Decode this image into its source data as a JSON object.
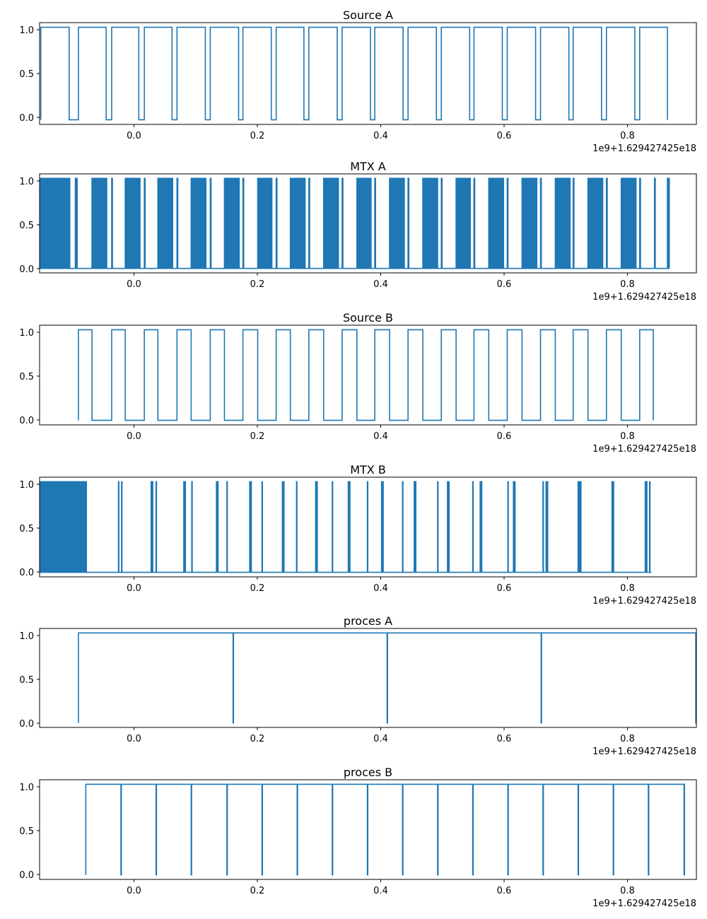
{
  "chart_data": [
    {
      "type": "line",
      "drawstyle": "steps",
      "title": "Source A",
      "xlim": [
        -0.153,
        0.913
      ],
      "ylim": [
        -0.05,
        1.05
      ],
      "x_ticks": [
        "0.0",
        "0.2",
        "0.4",
        "0.6",
        "0.8"
      ],
      "y_ticks": [
        "0.0",
        "0.5",
        "1.0"
      ],
      "x_offset_label": "1e9+1.629427425e18",
      "pattern": "square",
      "x_range": [
        -0.151,
        0.867
      ],
      "pulses": [
        [
          -0.151,
          -0.105
        ],
        [
          -0.09,
          -0.045
        ],
        [
          -0.036,
          0.008
        ],
        [
          0.017,
          0.062
        ],
        [
          0.07,
          0.116
        ],
        [
          0.124,
          0.17
        ],
        [
          0.177,
          0.223
        ],
        [
          0.231,
          0.276
        ],
        [
          0.284,
          0.33
        ],
        [
          0.338,
          0.384
        ],
        [
          0.391,
          0.437
        ],
        [
          0.445,
          0.491
        ],
        [
          0.499,
          0.545
        ],
        [
          0.552,
          0.598
        ],
        [
          0.606,
          0.652
        ],
        [
          0.66,
          0.706
        ],
        [
          0.713,
          0.759
        ],
        [
          0.767,
          0.813
        ],
        [
          0.821,
          0.866
        ]
      ],
      "data_points": [
        [
          -0.151,
          0
        ],
        [
          -0.151,
          1
        ],
        [
          -0.105,
          1
        ],
        [
          -0.105,
          0
        ],
        [
          -0.09,
          0
        ],
        [
          -0.09,
          1
        ],
        [
          -0.045,
          1
        ],
        [
          -0.045,
          0
        ],
        [
          -0.036,
          0
        ],
        [
          -0.036,
          1
        ],
        [
          0.008,
          1
        ],
        [
          0.008,
          0
        ],
        [
          0.017,
          0
        ],
        [
          0.017,
          1
        ],
        [
          0.062,
          1
        ],
        [
          0.062,
          0
        ],
        [
          0.07,
          0
        ],
        [
          0.07,
          1
        ],
        [
          0.116,
          1
        ],
        [
          0.116,
          0
        ],
        [
          0.124,
          0
        ],
        [
          0.124,
          1
        ],
        [
          0.17,
          1
        ],
        [
          0.17,
          0
        ],
        [
          0.177,
          0
        ],
        [
          0.177,
          1
        ],
        [
          0.223,
          1
        ],
        [
          0.223,
          0
        ],
        [
          0.231,
          0
        ],
        [
          0.231,
          1
        ],
        [
          0.276,
          1
        ],
        [
          0.276,
          0
        ],
        [
          0.284,
          0
        ],
        [
          0.284,
          1
        ],
        [
          0.33,
          1
        ],
        [
          0.33,
          0
        ],
        [
          0.338,
          0
        ],
        [
          0.338,
          1
        ],
        [
          0.384,
          1
        ],
        [
          0.384,
          0
        ],
        [
          0.391,
          0
        ],
        [
          0.391,
          1
        ],
        [
          0.437,
          1
        ],
        [
          0.437,
          0
        ],
        [
          0.445,
          0
        ],
        [
          0.445,
          1
        ],
        [
          0.491,
          1
        ],
        [
          0.491,
          0
        ],
        [
          0.499,
          0
        ],
        [
          0.499,
          1
        ],
        [
          0.545,
          1
        ],
        [
          0.545,
          0
        ],
        [
          0.552,
          0
        ],
        [
          0.552,
          1
        ],
        [
          0.598,
          1
        ],
        [
          0.598,
          0
        ],
        [
          0.606,
          0
        ],
        [
          0.606,
          1
        ],
        [
          0.652,
          1
        ],
        [
          0.652,
          0
        ],
        [
          0.66,
          0
        ],
        [
          0.66,
          1
        ],
        [
          0.706,
          1
        ],
        [
          0.706,
          0
        ],
        [
          0.713,
          0
        ],
        [
          0.713,
          1
        ],
        [
          0.759,
          1
        ],
        [
          0.759,
          0
        ],
        [
          0.767,
          0
        ],
        [
          0.767,
          1
        ],
        [
          0.813,
          1
        ],
        [
          0.813,
          0
        ],
        [
          0.821,
          0
        ],
        [
          0.821,
          1
        ],
        [
          0.866,
          1
        ],
        [
          0.866,
          0
        ]
      ],
      "color": "#1f77b4"
    },
    {
      "type": "line",
      "drawstyle": "steps",
      "title": "MTX A",
      "xlim": [
        -0.153,
        0.913
      ],
      "ylim": [
        -0.05,
        1.05
      ],
      "x_ticks": [
        "0.0",
        "0.2",
        "0.4",
        "0.6",
        "0.8"
      ],
      "y_ticks": [
        "0.0",
        "0.5",
        "1.0"
      ],
      "x_offset_label": "1e9+1.629427425e18",
      "pattern": "dense-bursts",
      "bursts": [
        [
          -0.153,
          -0.104
        ],
        [
          -0.095,
          -0.092
        ],
        [
          -0.068,
          -0.043
        ],
        [
          -0.036,
          -0.034
        ],
        [
          -0.014,
          0.01
        ],
        [
          0.017,
          0.019
        ],
        [
          0.039,
          0.063
        ],
        [
          0.07,
          0.072
        ],
        [
          0.093,
          0.117
        ],
        [
          0.124,
          0.126
        ],
        [
          0.147,
          0.171
        ],
        [
          0.177,
          0.179
        ],
        [
          0.201,
          0.224
        ],
        [
          0.231,
          0.233
        ],
        [
          0.254,
          0.278
        ],
        [
          0.284,
          0.286
        ],
        [
          0.308,
          0.332
        ],
        [
          0.338,
          0.34
        ],
        [
          0.362,
          0.385
        ],
        [
          0.391,
          0.393
        ],
        [
          0.415,
          0.439
        ],
        [
          0.445,
          0.447
        ],
        [
          0.469,
          0.493
        ],
        [
          0.499,
          0.501
        ],
        [
          0.523,
          0.546
        ],
        [
          0.552,
          0.554
        ],
        [
          0.576,
          0.6
        ],
        [
          0.606,
          0.608
        ],
        [
          0.63,
          0.654
        ],
        [
          0.66,
          0.662
        ],
        [
          0.684,
          0.708
        ],
        [
          0.713,
          0.715
        ],
        [
          0.737,
          0.761
        ],
        [
          0.767,
          0.769
        ],
        [
          0.791,
          0.815
        ],
        [
          0.821,
          0.823
        ],
        [
          0.845,
          0.847
        ],
        [
          0.866,
          0.869
        ]
      ],
      "color": "#1f77b4"
    },
    {
      "type": "line",
      "drawstyle": "steps",
      "title": "Source B",
      "xlim": [
        -0.153,
        0.913
      ],
      "ylim": [
        -0.05,
        1.05
      ],
      "x_ticks": [
        "0.0",
        "0.2",
        "0.4",
        "0.6",
        "0.8"
      ],
      "y_ticks": [
        "0.0",
        "0.5",
        "1.0"
      ],
      "x_offset_label": "1e9+1.629427425e18",
      "pattern": "square",
      "x_range": [
        -0.09,
        0.843
      ],
      "pulses": [
        [
          -0.09,
          -0.068
        ],
        [
          -0.036,
          -0.014
        ],
        [
          0.017,
          0.039
        ],
        [
          0.07,
          0.093
        ],
        [
          0.124,
          0.147
        ],
        [
          0.177,
          0.201
        ],
        [
          0.231,
          0.254
        ],
        [
          0.284,
          0.308
        ],
        [
          0.338,
          0.362
        ],
        [
          0.391,
          0.415
        ],
        [
          0.445,
          0.469
        ],
        [
          0.499,
          0.523
        ],
        [
          0.552,
          0.576
        ],
        [
          0.606,
          0.63
        ],
        [
          0.66,
          0.684
        ],
        [
          0.713,
          0.737
        ],
        [
          0.767,
          0.791
        ],
        [
          0.821,
          0.843
        ]
      ],
      "data_points": [
        [
          -0.09,
          0
        ],
        [
          -0.09,
          1
        ],
        [
          -0.068,
          1
        ],
        [
          -0.068,
          0
        ],
        [
          -0.036,
          0
        ],
        [
          -0.036,
          1
        ],
        [
          -0.014,
          1
        ],
        [
          -0.014,
          0
        ],
        [
          0.017,
          0
        ],
        [
          0.017,
          1
        ],
        [
          0.039,
          1
        ],
        [
          0.039,
          0
        ],
        [
          0.07,
          0
        ],
        [
          0.07,
          1
        ],
        [
          0.093,
          1
        ],
        [
          0.093,
          0
        ],
        [
          0.124,
          0
        ],
        [
          0.124,
          1
        ],
        [
          0.147,
          1
        ],
        [
          0.147,
          0
        ],
        [
          0.177,
          0
        ],
        [
          0.177,
          1
        ],
        [
          0.201,
          1
        ],
        [
          0.201,
          0
        ],
        [
          0.231,
          0
        ],
        [
          0.231,
          1
        ],
        [
          0.254,
          1
        ],
        [
          0.254,
          0
        ],
        [
          0.284,
          0
        ],
        [
          0.284,
          1
        ],
        [
          0.308,
          1
        ],
        [
          0.308,
          0
        ],
        [
          0.338,
          0
        ],
        [
          0.338,
          1
        ],
        [
          0.362,
          1
        ],
        [
          0.362,
          0
        ],
        [
          0.391,
          0
        ],
        [
          0.391,
          1
        ],
        [
          0.415,
          1
        ],
        [
          0.415,
          0
        ],
        [
          0.445,
          0
        ],
        [
          0.445,
          1
        ],
        [
          0.469,
          1
        ],
        [
          0.469,
          0
        ],
        [
          0.499,
          0
        ],
        [
          0.499,
          1
        ],
        [
          0.523,
          1
        ],
        [
          0.523,
          0
        ],
        [
          0.552,
          0
        ],
        [
          0.552,
          1
        ],
        [
          0.576,
          1
        ],
        [
          0.576,
          0
        ],
        [
          0.606,
          0
        ],
        [
          0.606,
          1
        ],
        [
          0.63,
          1
        ],
        [
          0.63,
          0
        ],
        [
          0.66,
          0
        ],
        [
          0.66,
          1
        ],
        [
          0.684,
          1
        ],
        [
          0.684,
          0
        ],
        [
          0.713,
          0
        ],
        [
          0.713,
          1
        ],
        [
          0.737,
          1
        ],
        [
          0.737,
          0
        ],
        [
          0.767,
          0
        ],
        [
          0.767,
          1
        ],
        [
          0.791,
          1
        ],
        [
          0.791,
          0
        ],
        [
          0.821,
          0
        ],
        [
          0.821,
          1
        ],
        [
          0.843,
          1
        ],
        [
          0.843,
          0
        ]
      ],
      "color": "#1f77b4"
    },
    {
      "type": "line",
      "drawstyle": "steps",
      "title": "MTX B",
      "xlim": [
        -0.153,
        0.913
      ],
      "ylim": [
        -0.05,
        1.05
      ],
      "x_ticks": [
        "0.0",
        "0.2",
        "0.4",
        "0.6",
        "0.8"
      ],
      "y_ticks": [
        "0.0",
        "0.5",
        "1.0"
      ],
      "x_offset_label": "1e9+1.629427425e18",
      "pattern": "spikes",
      "dense_range": [
        -0.153,
        -0.077
      ],
      "x_end": 0.84,
      "spikes": [
        -0.025,
        -0.02,
        0.028,
        0.03,
        0.036,
        0.081,
        0.083,
        0.094,
        0.134,
        0.136,
        0.151,
        0.188,
        0.19,
        0.208,
        0.241,
        0.243,
        0.264,
        0.295,
        0.297,
        0.322,
        0.348,
        0.35,
        0.379,
        0.402,
        0.404,
        0.436,
        0.455,
        0.457,
        0.493,
        0.509,
        0.511,
        0.55,
        0.562,
        0.564,
        0.607,
        0.616,
        0.618,
        0.664,
        0.669,
        0.671,
        0.721,
        0.723,
        0.725,
        0.776,
        0.778,
        0.83,
        0.832,
        0.837
      ],
      "color": "#1f77b4"
    },
    {
      "type": "line",
      "drawstyle": "steps",
      "title": "proces A",
      "xlim": [
        -0.153,
        0.913
      ],
      "ylim": [
        -0.05,
        1.05
      ],
      "x_ticks": [
        "0.0",
        "0.2",
        "0.4",
        "0.6",
        "0.8"
      ],
      "y_ticks": [
        "0.0",
        "0.5",
        "1.0"
      ],
      "x_offset_label": "1e9+1.629427425e18",
      "pattern": "drops",
      "x_start": -0.09,
      "x_end": 0.913,
      "drops": [
        0.161,
        0.411,
        0.661,
        0.912
      ],
      "color": "#1f77b4"
    },
    {
      "type": "line",
      "drawstyle": "steps",
      "title": "proces B",
      "xlim": [
        -0.153,
        0.913
      ],
      "ylim": [
        -0.05,
        1.05
      ],
      "x_ticks": [
        "0.0",
        "0.2",
        "0.4",
        "0.6",
        "0.8"
      ],
      "y_ticks": [
        "0.0",
        "0.5",
        "1.0"
      ],
      "x_offset_label": "1e9+1.629427425e18",
      "pattern": "drops",
      "x_start": -0.078,
      "x_end": 0.893,
      "drops": [
        -0.021,
        0.036,
        0.093,
        0.151,
        0.208,
        0.265,
        0.322,
        0.379,
        0.436,
        0.493,
        0.55,
        0.607,
        0.664,
        0.721,
        0.778,
        0.835,
        0.893
      ],
      "color": "#1f77b4"
    }
  ]
}
